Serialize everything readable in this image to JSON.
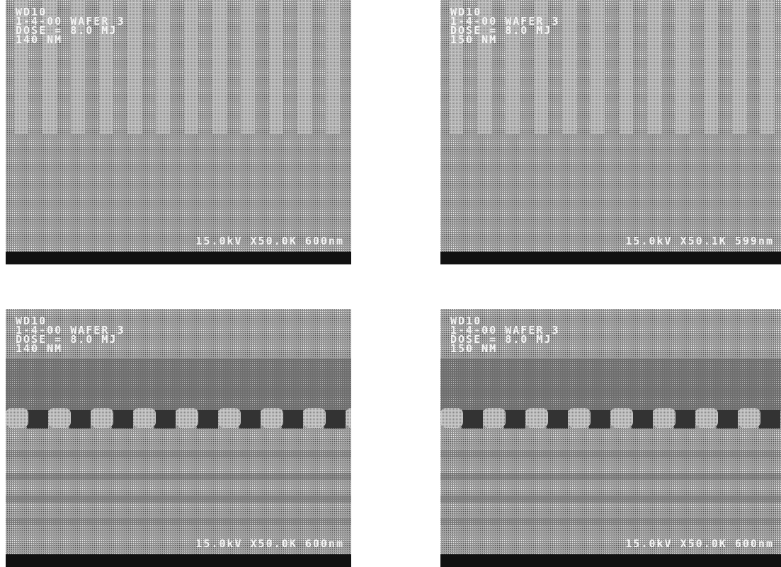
{
  "panels": [
    {
      "lines": [
        "WD10",
        "1-4-00 WAFER 3",
        "DOSE = 8.0 MJ",
        "140 NM"
      ],
      "footer": "15.0kV X50.0K 600nm"
    },
    {
      "lines": [
        "WD10",
        "1-4-00 WAFER 3",
        "DOSE = 8.0 MJ",
        "150 NM"
      ],
      "footer": "15.0kV X50.1K 599nm"
    },
    {
      "lines": [
        "WD10",
        "1-4-00 WAFER 3",
        "DOSE = 8.0 MJ",
        "140 NM"
      ],
      "footer": "15.0kV X50.0K 600nm"
    },
    {
      "lines": [
        "WD10",
        "1-4-00 WAFER 3",
        "DOSE = 8.0 MJ",
        "150 NM"
      ],
      "footer": "15.0kV X50.0K 600nm"
    }
  ]
}
